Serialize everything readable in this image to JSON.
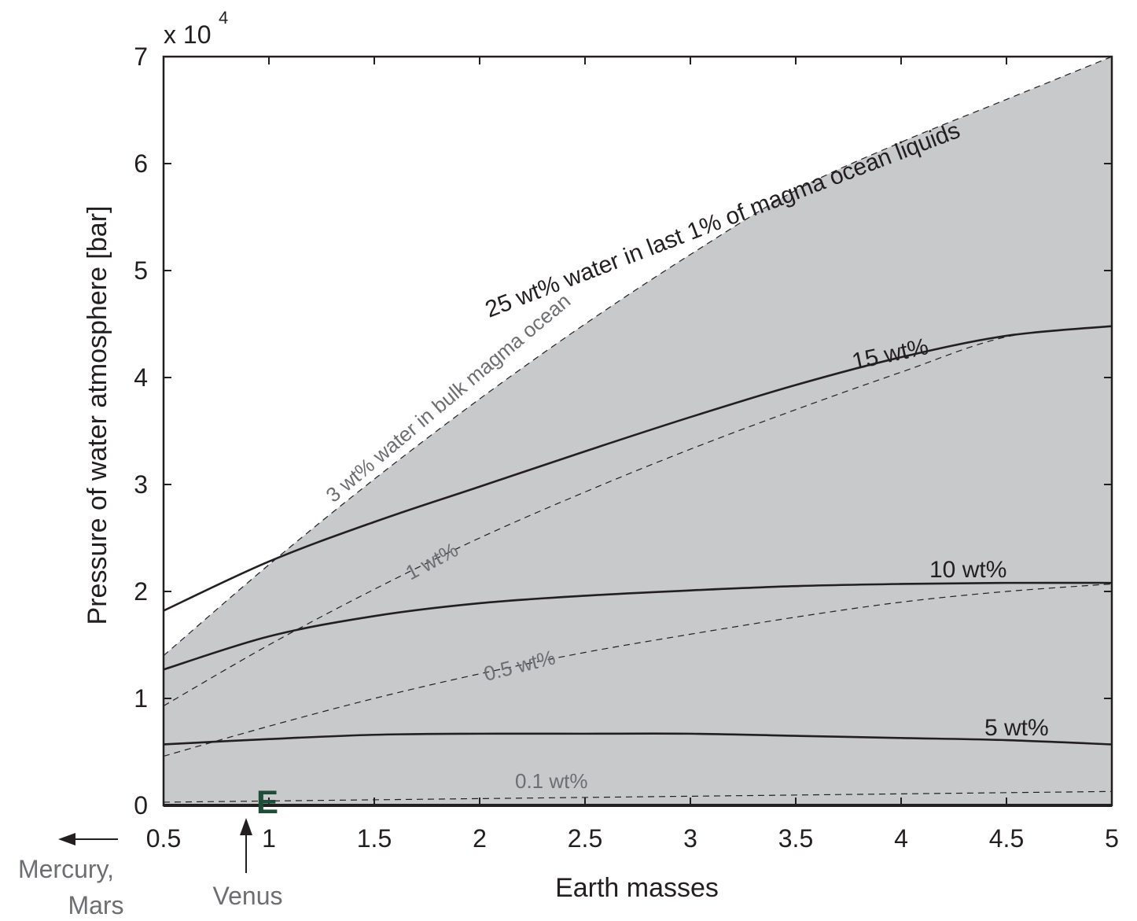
{
  "chart_data": {
    "type": "line",
    "xlabel": "Earth masses",
    "ylabel": "Pressure of water atmosphere [bar]",
    "y_multiplier_label": "x 10",
    "y_multiplier_exponent": "4",
    "xlim": [
      0.5,
      5
    ],
    "ylim": [
      0,
      7
    ],
    "x_ticks": [
      "0.5",
      "1",
      "1.5",
      "2",
      "2.5",
      "3",
      "3.5",
      "4",
      "4.5",
      "5"
    ],
    "y_ticks": [
      "0",
      "1",
      "2",
      "3",
      "4",
      "5",
      "6",
      "7"
    ],
    "shaded_region": "between 0.1 wt% and 3 wt% bulk magma ocean curves",
    "shade_color": "#c8c9cb",
    "series": [
      {
        "name": "25 wt% water in last 1% of magma ocean liquids",
        "style": "solid",
        "color": "#231f20",
        "x": [
          0.5,
          1.0,
          1.5,
          2.0,
          2.5,
          3.0,
          3.5,
          4.0,
          4.5,
          5.0
        ],
        "y": [
          1.82,
          2.28,
          2.65,
          2.98,
          3.31,
          3.63,
          3.93,
          4.19,
          4.39,
          4.48
        ]
      },
      {
        "name": "15 wt%",
        "style": "solid",
        "color": "#231f20",
        "x": [
          0.5,
          1.0,
          1.5,
          2.0,
          2.5,
          3.0,
          3.5,
          4.0,
          4.5,
          5.0
        ],
        "y": [
          1.27,
          1.58,
          1.77,
          1.89,
          1.96,
          2.01,
          2.05,
          2.07,
          2.08,
          2.08
        ]
      },
      {
        "name": "10 wt%",
        "style": "solid",
        "color": "#231f20",
        "x": [
          0.5,
          1.0,
          1.5,
          2.0,
          2.5,
          3.0,
          3.5,
          4.0,
          4.5,
          5.0
        ],
        "y": [
          0.57,
          0.62,
          0.66,
          0.67,
          0.67,
          0.67,
          0.65,
          0.63,
          0.61,
          0.57
        ]
      },
      {
        "name": "3 wt% water in bulk magma ocean",
        "style": "dashed",
        "color": "#231f20",
        "x": [
          0.5,
          1.0,
          1.5,
          2.0,
          2.5,
          3.0,
          3.5,
          4.0,
          4.5,
          5.0
        ],
        "y": [
          1.4,
          2.25,
          3.05,
          3.8,
          4.5,
          5.15,
          5.75,
          6.2,
          6.6,
          7.0
        ]
      },
      {
        "name": "1 wt%",
        "style": "dashed",
        "color": "#231f20",
        "x": [
          0.5,
          1.0,
          1.5,
          2.0,
          2.5,
          3.0,
          3.5,
          4.0,
          4.5,
          5.0
        ],
        "y": [
          0.93,
          1.5,
          2.02,
          2.5,
          2.93,
          3.33,
          3.7,
          4.05,
          4.38,
          4.48
        ]
      },
      {
        "name": "0.5 wt%",
        "style": "dashed",
        "color": "#231f20",
        "x": [
          0.5,
          1.0,
          1.5,
          2.0,
          2.5,
          3.0,
          3.5,
          4.0,
          4.5,
          5.0
        ],
        "y": [
          0.46,
          0.74,
          1.0,
          1.23,
          1.43,
          1.6,
          1.76,
          1.9,
          2.0,
          2.07
        ]
      },
      {
        "name": "0.1 wt%",
        "style": "dashed",
        "color": "#231f20",
        "x": [
          0.5,
          5.0
        ],
        "y": [
          0.03,
          0.13
        ]
      }
    ],
    "annotations": {
      "label_25": "25 wt% water in last 1% of magma ocean liquids",
      "label_15": "15 wt%",
      "label_10": "10 wt%",
      "label_5": "5 wt%",
      "label_3": "3 wt% water in bulk magma ocean",
      "label_1": "1 wt%",
      "label_05": "0.5 wt%",
      "label_01": "0.1 wt%",
      "earth_marker": "E",
      "venus_label": "Venus",
      "mercury_mars_label_line1": "Mercury,",
      "mercury_mars_label_line2": "Mars"
    }
  }
}
